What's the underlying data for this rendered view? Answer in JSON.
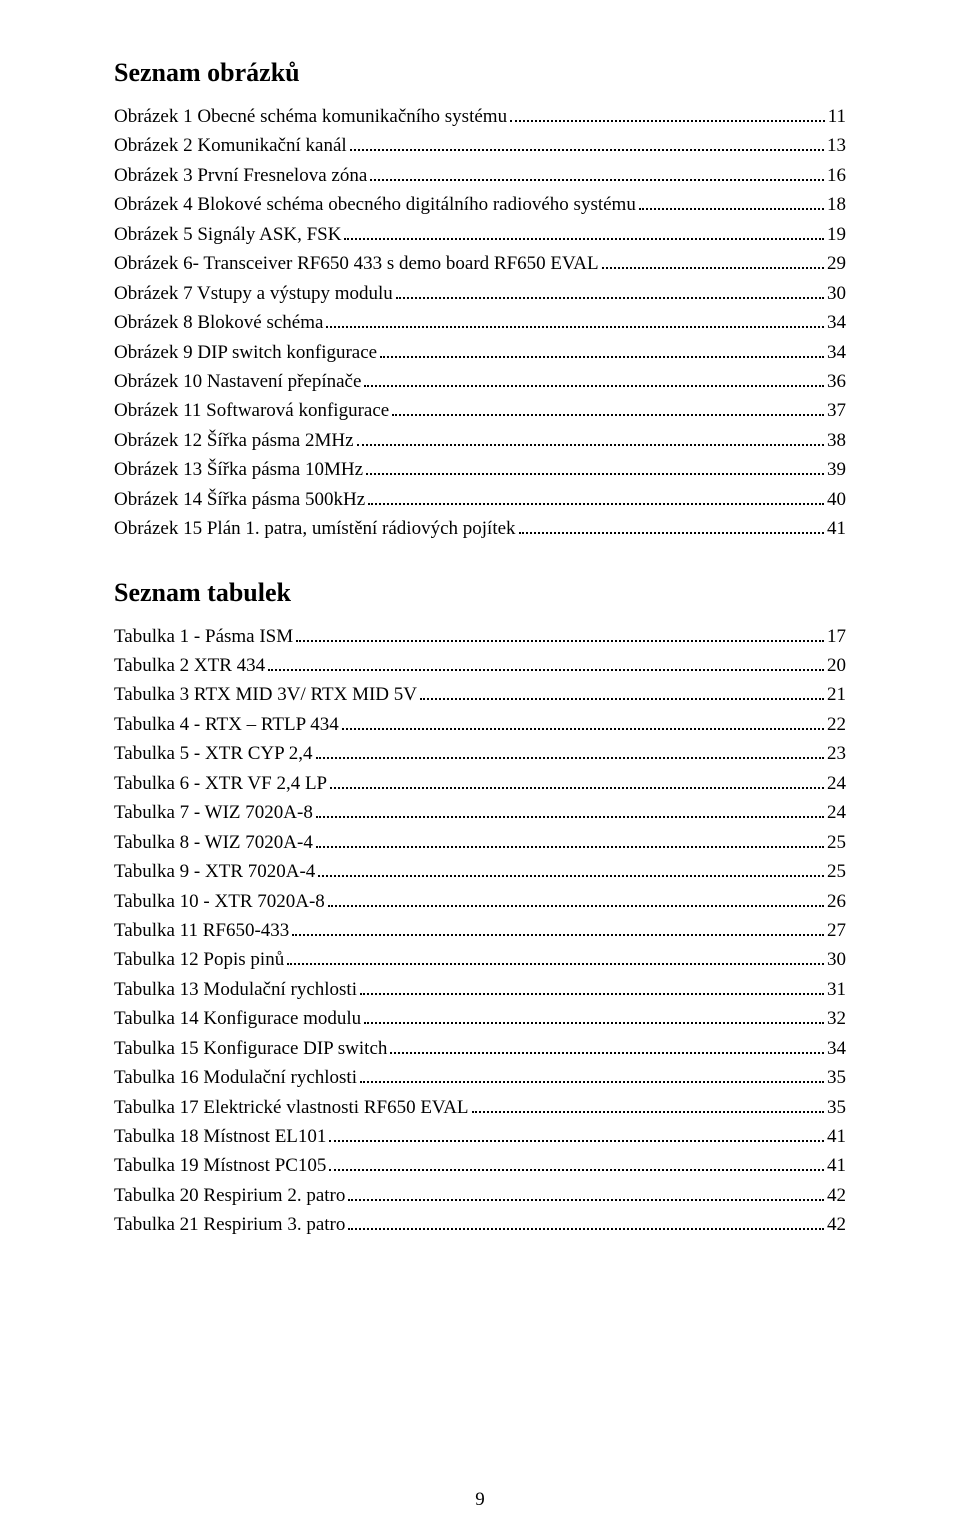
{
  "headings": {
    "figures": "Seznam obrázků",
    "tables": "Seznam tabulek"
  },
  "figures": [
    {
      "label": "Obrázek 1 Obecné schéma komunikačního systému",
      "page": "11"
    },
    {
      "label": "Obrázek 2 Komunikační kanál",
      "page": "13"
    },
    {
      "label": "Obrázek 3 První Fresnelova zóna",
      "page": "16"
    },
    {
      "label": "Obrázek 4 Blokové schéma obecného digitálního radiového systému",
      "page": "18"
    },
    {
      "label": "Obrázek 5 Signály ASK, FSK",
      "page": "19"
    },
    {
      "label": "Obrázek 6- Transceiver RF650 433 s demo board RF650 EVAL",
      "page": "29"
    },
    {
      "label": "Obrázek 7 Vstupy a výstupy modulu",
      "page": "30"
    },
    {
      "label": "Obrázek 8 Blokové schéma",
      "page": "34"
    },
    {
      "label": "Obrázek 9 DIP switch konfigurace",
      "page": "34"
    },
    {
      "label": "Obrázek 10 Nastavení přepínače",
      "page": "36"
    },
    {
      "label": "Obrázek 11 Softwarová konfigurace",
      "page": "37"
    },
    {
      "label": "Obrázek 12 Šířka pásma 2MHz",
      "page": "38"
    },
    {
      "label": "Obrázek 13 Šířka pásma 10MHz",
      "page": "39"
    },
    {
      "label": "Obrázek 14 Šířka pásma 500kHz",
      "page": "40"
    },
    {
      "label": "Obrázek 15 Plán 1. patra, umístění rádiových pojítek",
      "page": "41"
    }
  ],
  "tables": [
    {
      "label": "Tabulka 1 - Pásma ISM",
      "page": "17"
    },
    {
      "label": "Tabulka 2 XTR 434",
      "page": "20"
    },
    {
      "label": "Tabulka 3 RTX MID 3V/ RTX MID 5V",
      "page": "21"
    },
    {
      "label": "Tabulka 4 - RTX – RTLP 434",
      "page": "22"
    },
    {
      "label": "Tabulka 5 - XTR CYP 2,4",
      "page": "23"
    },
    {
      "label": "Tabulka 6 - XTR VF 2,4 LP",
      "page": "24"
    },
    {
      "label": "Tabulka 7 - WIZ 7020A-8",
      "page": "24"
    },
    {
      "label": "Tabulka 8 - WIZ 7020A-4",
      "page": "25"
    },
    {
      "label": "Tabulka 9 - XTR 7020A-4",
      "page": "25"
    },
    {
      "label": "Tabulka 10 - XTR 7020A-8",
      "page": "26"
    },
    {
      "label": "Tabulka 11 RF650-433",
      "page": "27"
    },
    {
      "label": "Tabulka 12 Popis pinů",
      "page": "30"
    },
    {
      "label": "Tabulka 13 Modulační rychlosti",
      "page": "31"
    },
    {
      "label": "Tabulka 14 Konfigurace modulu",
      "page": "32"
    },
    {
      "label": "Tabulka 15 Konfigurace DIP switch",
      "page": "34"
    },
    {
      "label": "Tabulka 16 Modulační rychlosti",
      "page": "35"
    },
    {
      "label": "Tabulka 17 Elektrické vlastnosti RF650 EVAL",
      "page": "35"
    },
    {
      "label": "Tabulka 18 Místnost EL101",
      "page": "41"
    },
    {
      "label": "Tabulka 19 Místnost PC105",
      "page": "41"
    },
    {
      "label": "Tabulka 20 Respirium 2. patro",
      "page": "42"
    },
    {
      "label": "Tabulka 21 Respirium 3. patro",
      "page": "42"
    }
  ],
  "page_number": "9",
  "style": {
    "font_family": "Times New Roman",
    "text_color": "#000000",
    "background_color": "#ffffff",
    "heading_fontsize_pt": 20,
    "body_fontsize_pt": 14,
    "leader_style": "dotted"
  }
}
